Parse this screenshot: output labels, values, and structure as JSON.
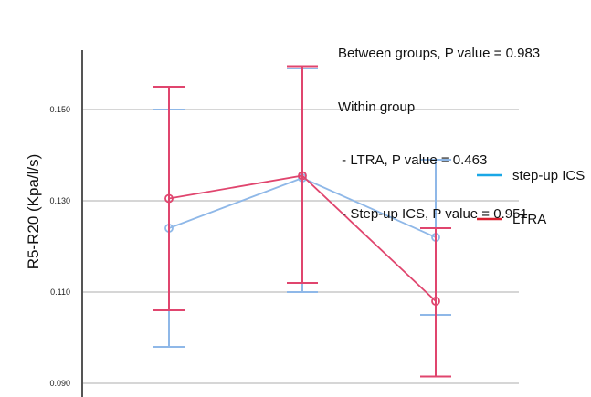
{
  "chart_data": {
    "type": "line",
    "ylabel": "R5-R20 (Kpa/l/s)",
    "xlabel": "",
    "ylim": [
      0.088,
      0.162
    ],
    "yticks": [
      0.09,
      0.11,
      0.13,
      0.15
    ],
    "ytick_labels": [
      "0.090",
      "0.110",
      "0.130",
      "0.150"
    ],
    "grid": true,
    "legend_position": "right",
    "x": [
      1,
      2,
      3
    ],
    "series": [
      {
        "name": "step-up ICS",
        "color": "#8fb8e8",
        "legend_color": "#1aa7e6",
        "values": [
          0.124,
          0.135,
          0.122
        ],
        "err_low": [
          0.098,
          0.11,
          0.105
        ],
        "err_high": [
          0.15,
          0.159,
          0.139
        ]
      },
      {
        "name": "LTRA",
        "color": "#e0456e",
        "legend_color": "#d9202f",
        "values": [
          0.1305,
          0.1355,
          0.108
        ],
        "err_low": [
          0.106,
          0.112,
          0.0915
        ],
        "err_high": [
          0.155,
          0.1595,
          0.124
        ]
      }
    ],
    "annotations": [
      "Between groups, P value = 0.983",
      "Within group",
      " - LTRA, P value = 0.463",
      " - Step-up ICS, P value = 0.951"
    ]
  }
}
